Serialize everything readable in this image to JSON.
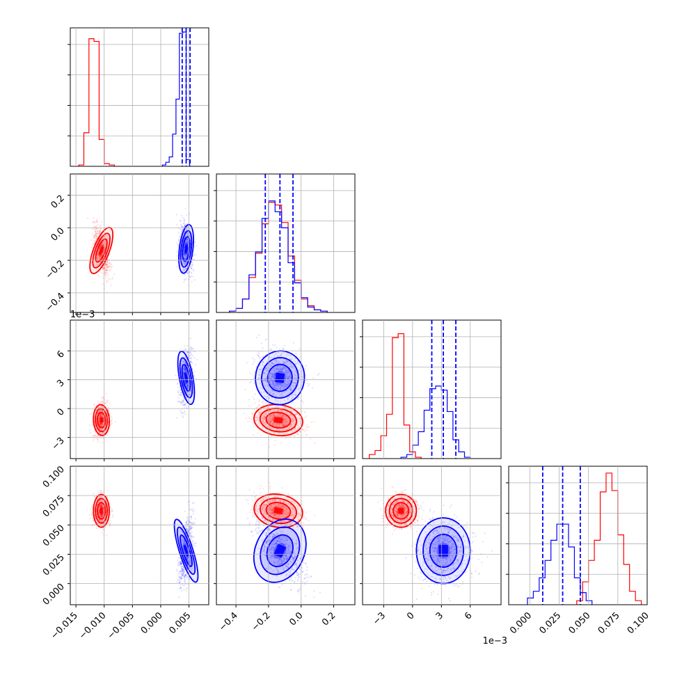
{
  "chart_data": {
    "type": "corner",
    "grid": true,
    "colors": {
      "series_a": "#ff0000",
      "series_b": "#0000ff"
    },
    "series": [
      {
        "color": "#ff0000",
        "means": [
          -0.0105,
          -0.14,
          -0.0012,
          0.062
        ],
        "stds": [
          0.0007,
          0.075,
          0.0008,
          0.007
        ],
        "histograms": [
          {
            "edges_start": -0.0145,
            "bin_width": 0.0009,
            "counts": [
              0.01,
              0.25,
              0.95,
              0.93,
              0.2,
              0.02,
              0.01
            ]
          },
          {
            "edges_start": -0.44,
            "bin_width": 0.04,
            "counts": [
              0.01,
              0.03,
              0.1,
              0.26,
              0.44,
              0.66,
              0.82,
              0.8,
              0.67,
              0.42,
              0.24,
              0.1,
              0.05,
              0.02,
              0.01
            ]
          },
          {
            "edges_start": -0.0045,
            "bin_width": 0.0006,
            "counts": [
              0.03,
              0.06,
              0.17,
              0.33,
              0.9,
              0.93,
              0.25,
              0.05,
              0.01
            ]
          },
          {
            "edges_start": 0.04,
            "bin_width": 0.005,
            "counts": [
              0.03,
              0.17,
              0.33,
              0.48,
              0.84,
              0.98,
              0.85,
              0.52,
              0.3,
              0.1,
              0.03
            ]
          }
        ]
      },
      {
        "color": "#0000ff",
        "means": [
          0.0045,
          -0.13,
          0.0032,
          0.028
        ],
        "stds": [
          0.0006,
          0.075,
          0.0014,
          0.014
        ],
        "quantile_lines": [
          [
            0.0038,
            0.0045,
            0.0052
          ],
          [
            -0.22,
            -0.13,
            -0.05
          ],
          [
            0.002,
            0.0032,
            0.0045
          ],
          [
            0.011,
            0.028,
            0.043
          ]
        ],
        "histograms": [
          {
            "edges_start": 0.0003,
            "bin_width": 0.0006,
            "counts": [
              0.01,
              0.03,
              0.07,
              0.24,
              0.5,
              0.99,
              1.0,
              0.05
            ]
          },
          {
            "edges_start": -0.44,
            "bin_width": 0.04,
            "counts": [
              0.01,
              0.03,
              0.1,
              0.28,
              0.45,
              0.7,
              0.83,
              0.75,
              0.63,
              0.37,
              0.22,
              0.11,
              0.04,
              0.02,
              0.01
            ]
          },
          {
            "edges_start": -0.0012,
            "bin_width": 0.0006,
            "counts": [
              0.01,
              0.03,
              0.1,
              0.2,
              0.36,
              0.52,
              0.54,
              0.51,
              0.35,
              0.14,
              0.05,
              0.01
            ]
          },
          {
            "edges_start": -0.002,
            "bin_width": 0.005,
            "counts": [
              0.05,
              0.1,
              0.2,
              0.33,
              0.48,
              0.6,
              0.6,
              0.43,
              0.2,
              0.09,
              0.03
            ]
          }
        ]
      }
    ],
    "axes": [
      {
        "range": [
          -0.016,
          0.0085
        ],
        "ticks": [
          -0.015,
          -0.01,
          -0.005,
          0.0,
          0.005
        ],
        "tick_labels": [
          "−0.015",
          "−0.010",
          "−0.005",
          "0.000",
          "0.005"
        ]
      },
      {
        "range": [
          -0.52,
          0.33
        ],
        "ticks": [
          -0.4,
          -0.2,
          0.0,
          0.2
        ],
        "tick_labels": [
          "−0.4",
          "−0.2",
          "0.0",
          "0.2"
        ]
      },
      {
        "range": [
          -0.0052,
          0.0092
        ],
        "ticks": [
          -0.003,
          0.0,
          0.003,
          0.006
        ],
        "tick_labels": [
          "−3",
          "0",
          "3",
          "6"
        ],
        "offset_label": "1e−3"
      },
      {
        "range": [
          -0.018,
          0.1
        ],
        "ticks": [
          0.0,
          0.025,
          0.05,
          0.075,
          0.1
        ],
        "tick_labels": [
          "0.000",
          "0.025",
          "0.050",
          "0.075",
          "0.100"
        ]
      }
    ]
  }
}
